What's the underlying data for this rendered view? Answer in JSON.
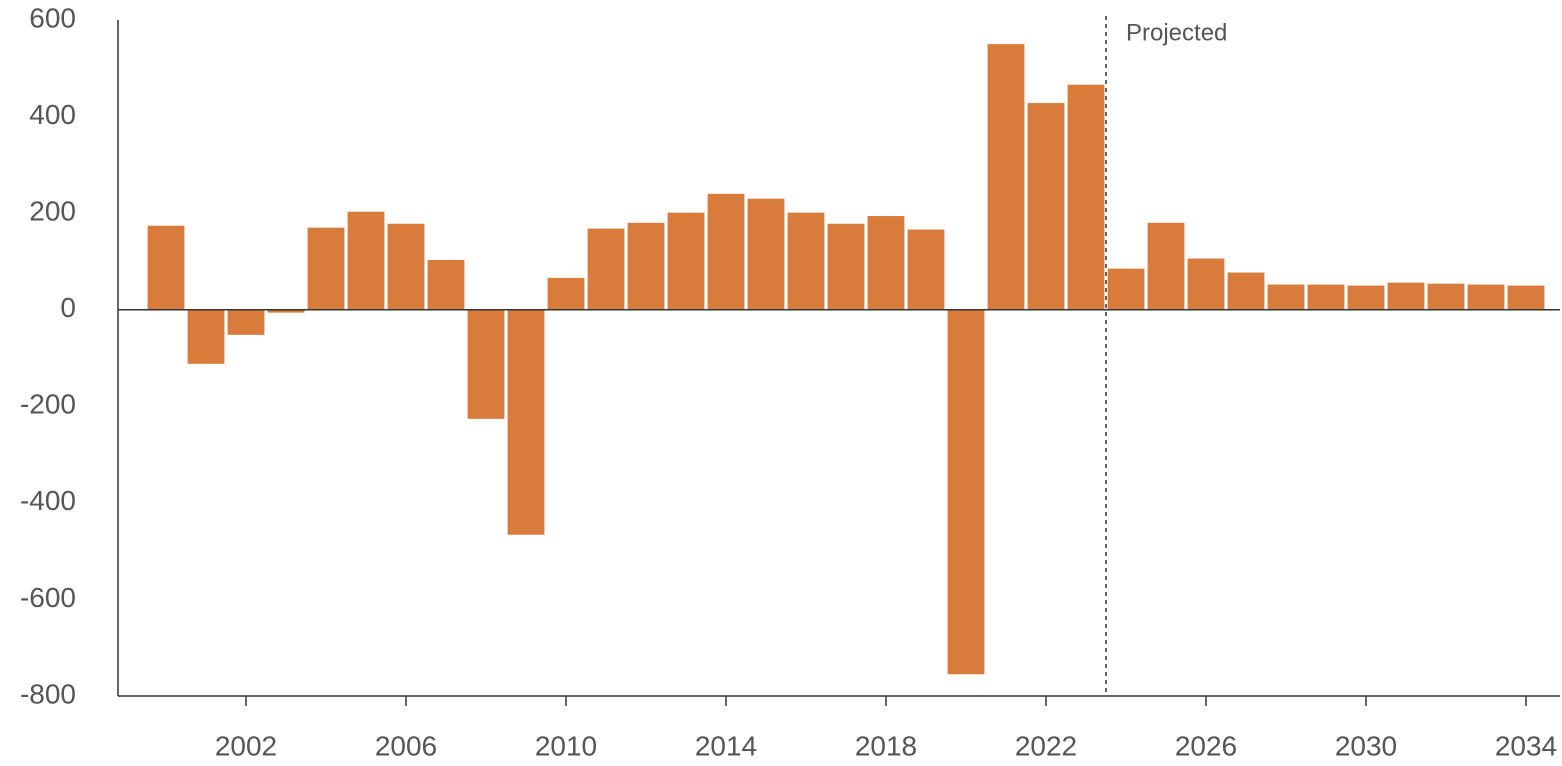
{
  "chart_data": {
    "type": "bar",
    "x": [
      2000,
      2001,
      2002,
      2003,
      2004,
      2005,
      2006,
      2007,
      2008,
      2009,
      2010,
      2011,
      2012,
      2013,
      2014,
      2015,
      2016,
      2017,
      2018,
      2019,
      2020,
      2021,
      2022,
      2023,
      2024,
      2025,
      2026,
      2027,
      2028,
      2029,
      2030,
      2031,
      2032,
      2033,
      2034
    ],
    "values": [
      174,
      -112,
      -52,
      -6,
      170,
      203,
      178,
      103,
      -226,
      -466,
      66,
      168,
      180,
      201,
      240,
      230,
      201,
      178,
      194,
      166,
      -755,
      550,
      428,
      466,
      85,
      180,
      106,
      77,
      52,
      52,
      50,
      56,
      54,
      52,
      50
    ],
    "color": "#d97b3a",
    "xlim": [
      1998.8,
      2034.85
    ],
    "xticks": [
      2002,
      2006,
      2010,
      2014,
      2018,
      2022,
      2026,
      2030,
      2034
    ],
    "ylim": [
      -800,
      600
    ],
    "yticks": [
      -800,
      -600,
      -400,
      -200,
      0,
      200,
      400,
      600
    ],
    "grid": false,
    "projection_start": 2023.5,
    "annotation": "Projected"
  }
}
